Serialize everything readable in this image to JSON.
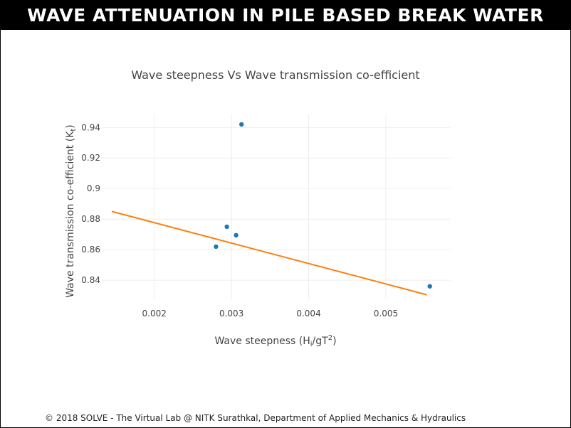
{
  "banner": {
    "title": "WAVE ATTENUATION IN PILE BASED BREAK WATER"
  },
  "footer": {
    "text": "© 2018 SOLVE - The Virtual Lab @ NITK Surathkal, Department of Applied Mechanics & Hydraulics"
  },
  "chart_data": {
    "type": "scatter",
    "title": "Wave steepness  Vs Wave transmission co-efficient",
    "xlabel": {
      "main": "Wave steepness (H",
      "sub": "i",
      "mid": "/gT",
      "sup": "2",
      "end": ")"
    },
    "ylabel": {
      "main": "Wave transmission co-efficient (K",
      "sub": "t",
      "end": ")"
    },
    "xlim": [
      0.00132,
      0.00584
    ],
    "ylim": [
      0.8275,
      0.9485
    ],
    "x_ticks": [
      {
        "v": 0.002,
        "label": "0.002"
      },
      {
        "v": 0.003,
        "label": "0.003"
      },
      {
        "v": 0.004,
        "label": "0.004"
      },
      {
        "v": 0.005,
        "label": "0.005"
      }
    ],
    "y_ticks": [
      {
        "v": 0.84,
        "label": "0.84"
      },
      {
        "v": 0.86,
        "label": "0.86"
      },
      {
        "v": 0.88,
        "label": "0.88"
      },
      {
        "v": 0.9,
        "label": "0.9"
      },
      {
        "v": 0.92,
        "label": "0.92"
      },
      {
        "v": 0.94,
        "label": "0.94"
      }
    ],
    "grid": true,
    "series": [
      {
        "kind": "points",
        "color": "#1f77b4",
        "x": [
          0.0028,
          0.00294,
          0.00306,
          0.00313,
          0.00557
        ],
        "y": [
          0.862,
          0.875,
          0.8695,
          0.942,
          0.836
        ]
      },
      {
        "kind": "trend-line",
        "color": "#ff7f0e",
        "x": [
          0.00145,
          0.00553
        ],
        "y": [
          0.885,
          0.8305
        ]
      }
    ]
  }
}
